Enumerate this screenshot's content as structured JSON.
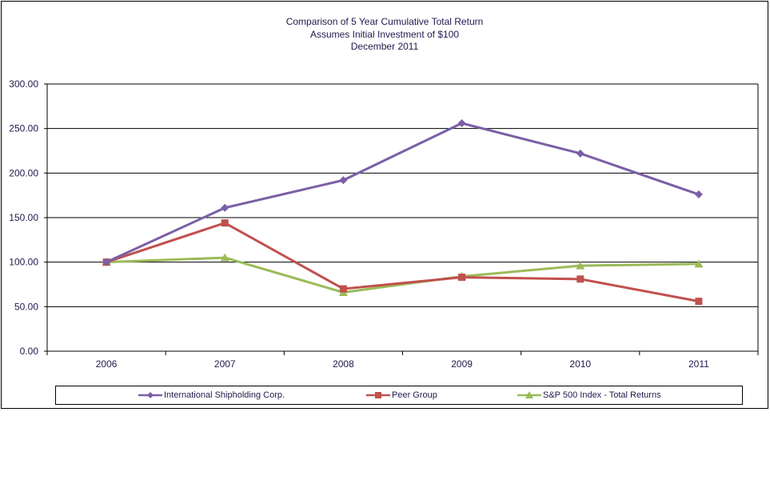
{
  "title": {
    "line1": "Comparison of 5 Year Cumulative Total Return",
    "line2": "Assumes Initial Investment of $100",
    "line3": "December 2011"
  },
  "chart_data": {
    "type": "line",
    "x": [
      "2006",
      "2007",
      "2008",
      "2009",
      "2010",
      "2011"
    ],
    "ylim": [
      0,
      300
    ],
    "yticks": [
      "0.00",
      "50.00",
      "100.00",
      "150.00",
      "200.00",
      "250.00",
      "300.00"
    ],
    "grid": true,
    "legend_position": "bottom",
    "series": [
      {
        "name": "International Shipholding Corp.",
        "color": "#7b5fa6",
        "marker": "diamond",
        "values": [
          100,
          161,
          192,
          256,
          222,
          176
        ]
      },
      {
        "name": "Peer Group",
        "color": "#c0504d",
        "marker": "square",
        "values": [
          100,
          144,
          70,
          83,
          81,
          56
        ]
      },
      {
        "name": "S&P 500 Index - Total Returns",
        "color": "#9bbb59",
        "marker": "triangle",
        "values": [
          100,
          105,
          66,
          84,
          96,
          98
        ]
      }
    ]
  }
}
